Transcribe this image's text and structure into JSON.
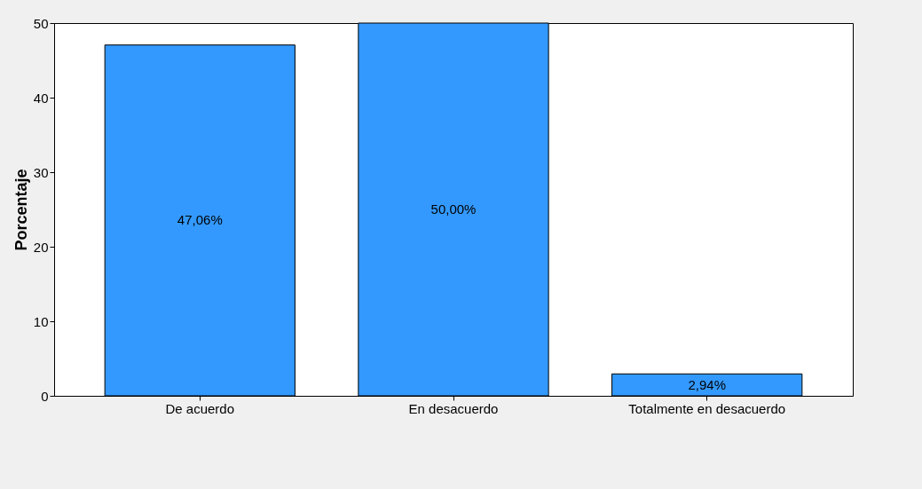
{
  "chart_data": {
    "type": "bar",
    "ylabel": "Porcentaje",
    "categories": [
      "De acuerdo",
      "En desacuerdo",
      "Totalmente en desacuerdo"
    ],
    "values": [
      47.06,
      50.0,
      2.94
    ],
    "value_labels": [
      "47,06%",
      "50,00%",
      "2,94%"
    ],
    "color": "#3399ff",
    "ylim": [
      0,
      50
    ],
    "yticks": [
      0,
      10,
      20,
      30,
      40,
      50
    ],
    "grid": false
  }
}
